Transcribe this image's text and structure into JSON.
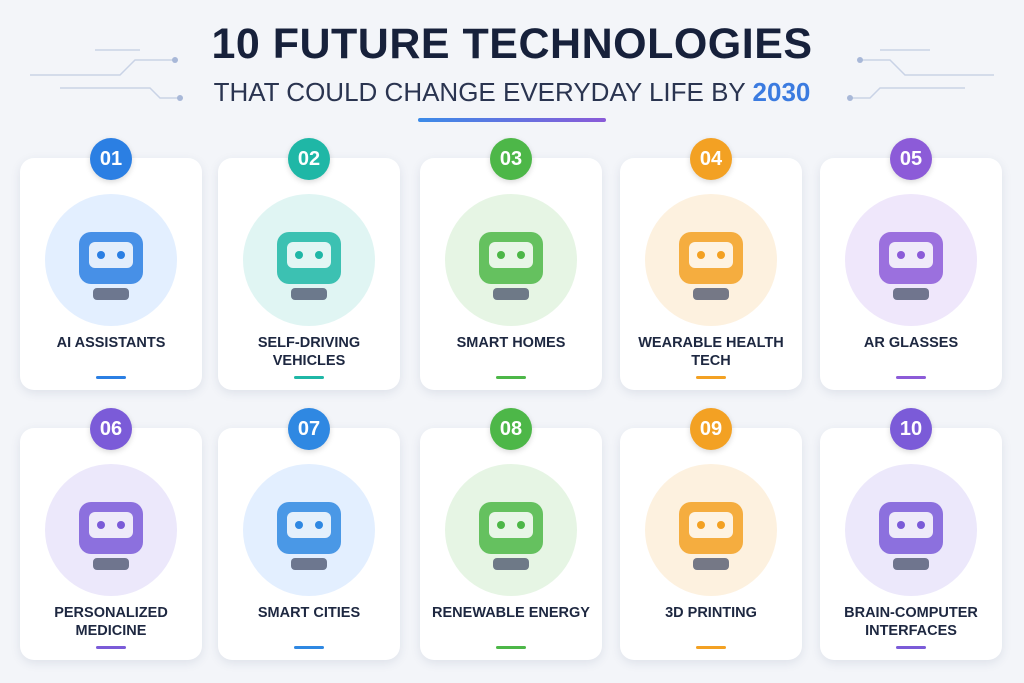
{
  "header": {
    "title": "10 FUTURE TECHNOLOGIES",
    "subtitle": "THAT COULD CHANGE EVERYDAY LIFE BY",
    "highlight": "2030"
  },
  "items": [
    {
      "number": "01",
      "label": "AI ASSISTANTS"
    },
    {
      "number": "02",
      "label": "SELF-DRIVING VEHICLES"
    },
    {
      "number": "03",
      "label": "SMART HOMES"
    },
    {
      "number": "04",
      "label": "WEARABLE HEALTH TECH"
    },
    {
      "number": "05",
      "label": "AR GLASSES"
    },
    {
      "number": "06",
      "label": "PERSONALIZED MEDICINE"
    },
    {
      "number": "07",
      "label": "SMART CITIES"
    },
    {
      "number": "08",
      "label": "RENEWABLE ENERGY"
    },
    {
      "number": "09",
      "label": "3D PRINTING"
    },
    {
      "number": "10",
      "label": "BRAIN-COMPUTER INTERFACES"
    }
  ]
}
